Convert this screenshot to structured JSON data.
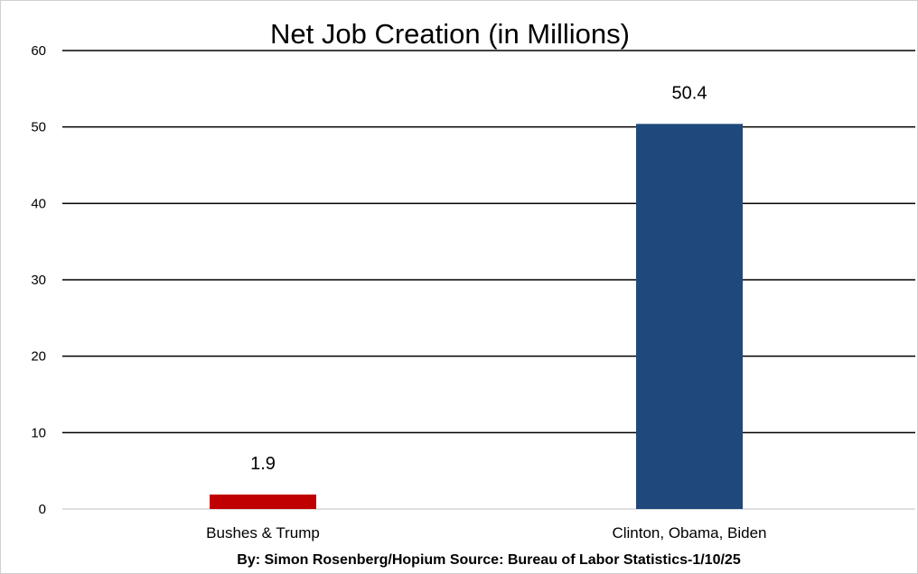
{
  "chart_data": {
    "type": "bar",
    "title": "Net Job Creation (in Millions)",
    "categories": [
      "Bushes & Trump",
      "Clinton, Obama, Biden"
    ],
    "values": [
      1.9,
      50.4
    ],
    "value_labels": [
      "1.9",
      "50.4"
    ],
    "bar_colors": [
      "#c00000",
      "#1f497d"
    ],
    "ylim": [
      0,
      60
    ],
    "yticks": [
      0,
      10,
      20,
      30,
      40,
      50,
      60
    ],
    "xlabel": "",
    "ylabel": "",
    "grid": true,
    "legend": "none"
  },
  "footer": {
    "source": "By: Simon Rosenberg/Hopium Source: Bureau of Labor Statistics-1/10/25"
  }
}
